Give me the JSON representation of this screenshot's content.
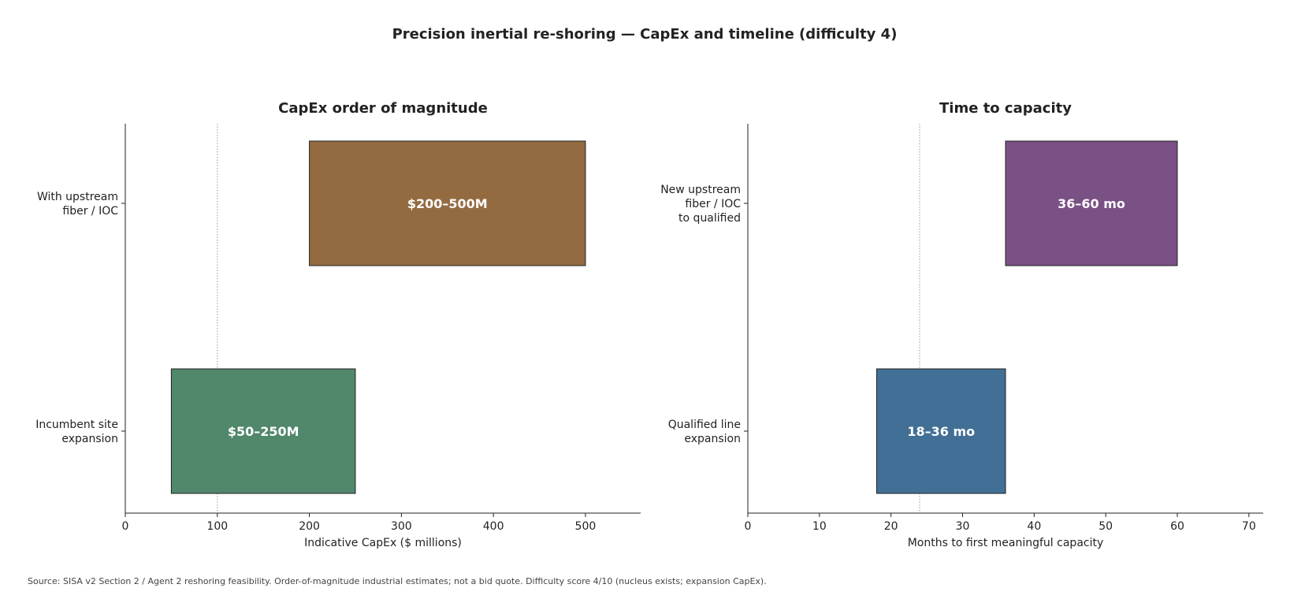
{
  "title": "Precision inertial re-shoring — CapEx and timeline (difficulty 4)",
  "source": "Source: SISA v2 Section 2 / Agent 2 reshoring feasibility. Order-of-magnitude industrial estimates; not a bid quote. Difficulty score 4/10 (nucleus exists; expansion CapEx).",
  "chart_data": [
    {
      "type": "bar",
      "orientation": "horizontal",
      "title": "CapEx order of magnitude",
      "xlabel": "Indicative CapEx ($ millions)",
      "ylabel": "",
      "xlim": [
        0,
        560
      ],
      "xticks": [
        0,
        100,
        200,
        300,
        400,
        500
      ],
      "reference_line": 100,
      "grid": false,
      "bars": [
        {
          "category": [
            "With upstream",
            "fiber / IOC"
          ],
          "start": 200,
          "end": 500,
          "label": "$200–500M",
          "color": "#946b41"
        },
        {
          "category": [
            "Incumbent site",
            "expansion"
          ],
          "start": 50,
          "end": 250,
          "label": "$50–250M",
          "color": "#51876b"
        }
      ]
    },
    {
      "type": "bar",
      "orientation": "horizontal",
      "title": "Time to capacity",
      "xlabel": "Months to first meaningful capacity",
      "ylabel": "",
      "xlim": [
        0,
        72
      ],
      "xticks": [
        0,
        10,
        20,
        30,
        40,
        50,
        60,
        70
      ],
      "reference_line": 24,
      "grid": false,
      "bars": [
        {
          "category": [
            "New upstream",
            "fiber / IOC",
            "to qualified"
          ],
          "start": 36,
          "end": 60,
          "label": "36–60 mo",
          "color": "#7a5185"
        },
        {
          "category": [
            "Qualified line",
            "expansion"
          ],
          "start": 18,
          "end": 36,
          "label": "18–36 mo",
          "color": "#426f95"
        }
      ]
    }
  ]
}
